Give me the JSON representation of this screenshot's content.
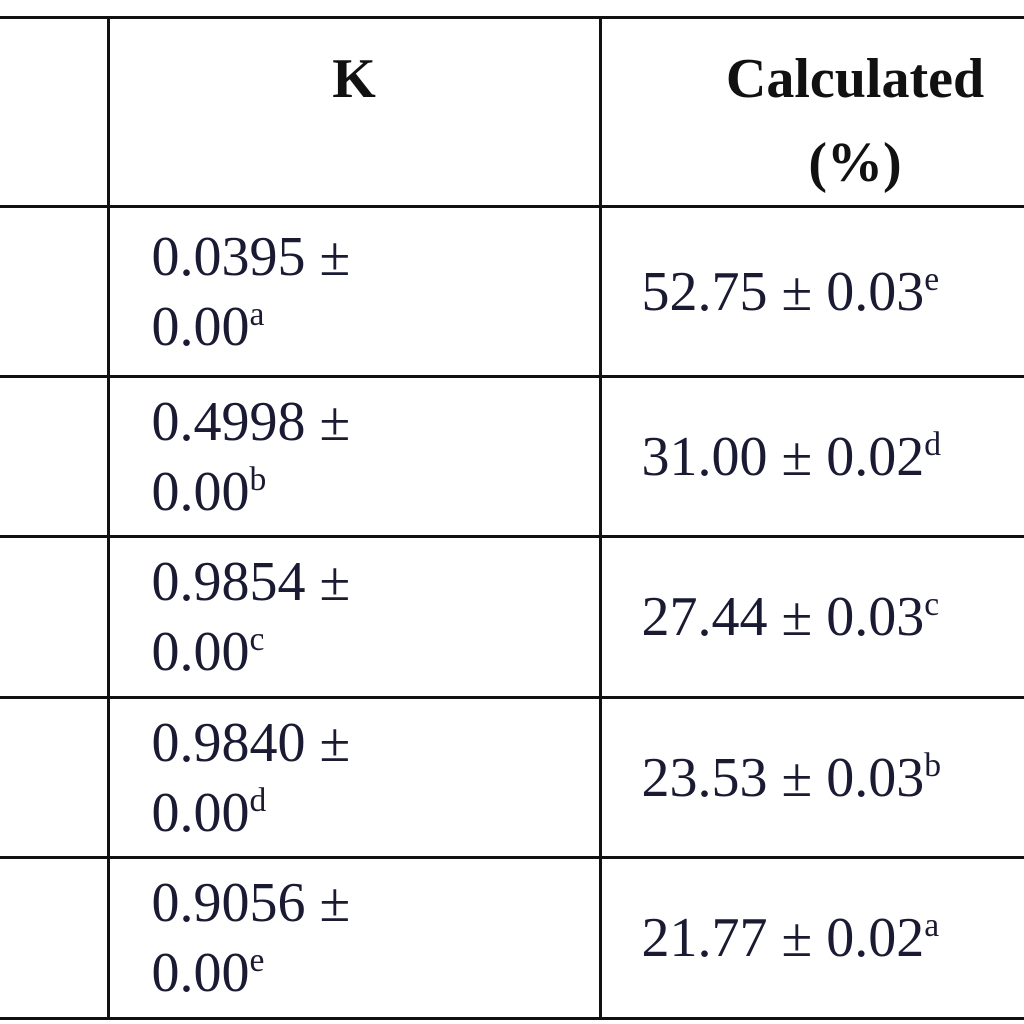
{
  "table": {
    "header": [
      "K",
      "Calculated (%)"
    ],
    "rows": [
      {
        "k_mean": "0.0395 ±",
        "k_sd": "0.00",
        "k_sup": "a",
        "calculated": "52.75 ± 0.03",
        "calculated_sup": "e"
      },
      {
        "k_mean": "0.4998 ±",
        "k_sd": "0.00",
        "k_sup": "b",
        "calculated": "31.00 ± 0.02",
        "calculated_sup": "d"
      },
      {
        "k_mean": "0.9854 ±",
        "k_sd": "0.00",
        "k_sup": "c",
        "calculated": "27.44 ± 0.03",
        "calculated_sup": "c"
      },
      {
        "k_mean": "0.9840 ±",
        "k_sd": "0.00",
        "k_sup": "d",
        "calculated": "23.53 ± 0.03",
        "calculated_sup": "b"
      },
      {
        "k_mean": "0.9056 ±",
        "k_sd": "0.00",
        "k_sup": "e",
        "calculated": "21.77 ± 0.02",
        "calculated_sup": "a"
      }
    ]
  }
}
